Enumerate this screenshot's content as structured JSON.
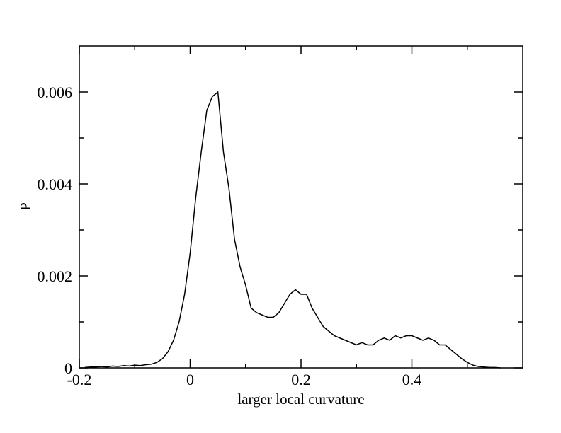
{
  "chart_data": {
    "type": "line",
    "x_label": "larger local curvature",
    "y_label": "P",
    "x": [
      -0.19,
      -0.18,
      -0.17,
      -0.16,
      -0.15,
      -0.14,
      -0.13,
      -0.12,
      -0.11,
      -0.1,
      -0.09,
      -0.08,
      -0.07,
      -0.06,
      -0.05,
      -0.04,
      -0.03,
      -0.02,
      -0.01,
      0,
      0.01,
      0.02,
      0.03,
      0.04,
      0.05,
      0.06,
      0.07,
      0.08,
      0.09,
      0.1,
      0.11,
      0.12,
      0.13,
      0.14,
      0.15,
      0.16,
      0.17,
      0.18,
      0.19,
      0.2,
      0.21,
      0.22,
      0.23,
      0.24,
      0.25,
      0.26,
      0.27,
      0.28,
      0.29,
      0.3,
      0.31,
      0.32,
      0.33,
      0.34,
      0.35,
      0.36,
      0.37,
      0.38,
      0.39,
      0.4,
      0.41,
      0.42,
      0.43,
      0.44,
      0.45,
      0.46,
      0.47,
      0.48,
      0.49,
      0.5,
      0.51,
      0.52,
      0.53,
      0.54,
      0.55,
      0.56
    ],
    "values": [
      1e-05,
      2e-05,
      2e-05,
      3e-05,
      2e-05,
      4e-05,
      3e-05,
      5e-05,
      4e-05,
      6e-05,
      5e-05,
      7e-05,
      8e-05,
      0.00012,
      0.0002,
      0.00035,
      0.0006,
      0.001,
      0.0016,
      0.0025,
      0.0037,
      0.0047,
      0.0056,
      0.0059,
      0.006,
      0.0047,
      0.0039,
      0.0028,
      0.0022,
      0.0018,
      0.0013,
      0.0012,
      0.00115,
      0.0011,
      0.0011,
      0.0012,
      0.0014,
      0.0016,
      0.0017,
      0.0016,
      0.0016,
      0.0013,
      0.0011,
      0.0009,
      0.0008,
      0.0007,
      0.00065,
      0.0006,
      0.00055,
      0.0005,
      0.00055,
      0.0005,
      0.0005,
      0.0006,
      0.00065,
      0.0006,
      0.0007,
      0.00065,
      0.0007,
      0.0007,
      0.00065,
      0.0006,
      0.00065,
      0.0006,
      0.0005,
      0.0005,
      0.0004,
      0.0003,
      0.0002,
      0.00012,
      6e-05,
      3e-05,
      2e-05,
      1e-05,
      1e-05,
      0
    ],
    "color": "#000000",
    "xlim": [
      -0.2,
      0.6
    ],
    "xticks": [
      -0.2,
      0,
      0.2,
      0.4
    ],
    "ylim": [
      0,
      0.007
    ],
    "yticks": [
      0,
      0.002,
      0.004,
      0.006
    ]
  }
}
